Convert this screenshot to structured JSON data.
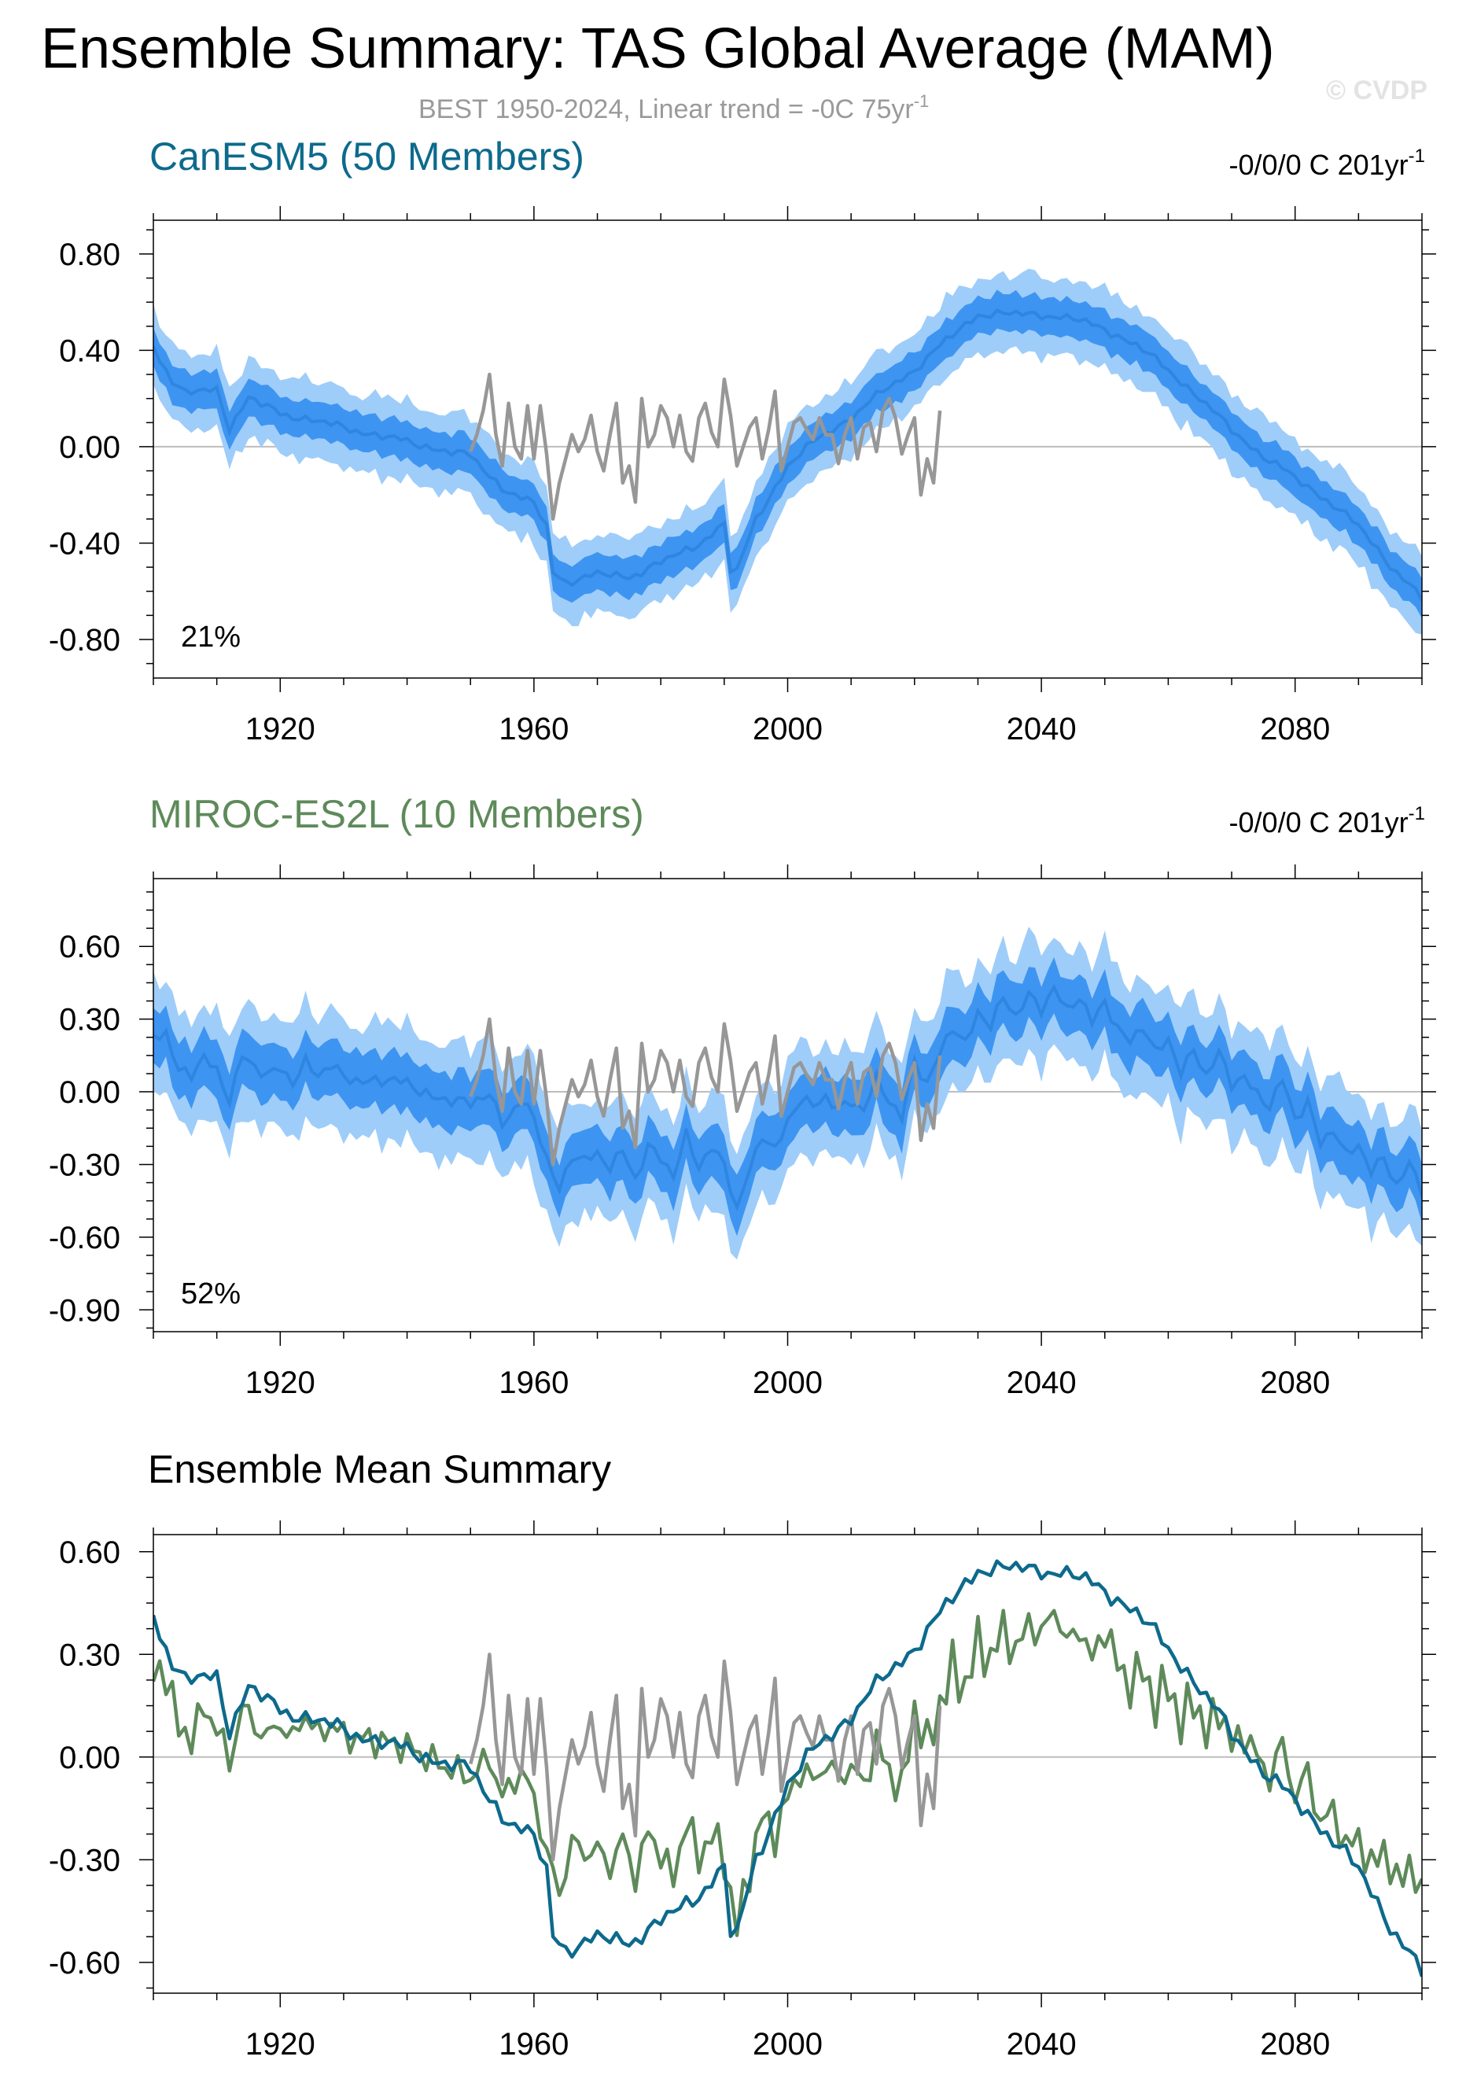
{
  "header": {
    "title": "Ensemble Summary: TAS Global Average (MAM)",
    "subtitle_main": "BEST 1950-2024, Linear trend = -0C 75yr",
    "subtitle_sup": "-1",
    "copyright": "© CVDP"
  },
  "colors": {
    "canesm": "#0d6a8c",
    "miroc": "#5e8a5a",
    "obs": "#979797",
    "band_outer": "#9fcdf9",
    "band_inner": "#3e95f1",
    "band_mean": "#2f86e0",
    "zero_line": "#bdbdbd"
  },
  "chart_data": [
    {
      "type": "area",
      "panel": "canesm5",
      "title": "CanESM5 (50 Members)",
      "trend_label": "-0/0/0 C 201yr",
      "trend_sup": "-1",
      "annotation": "21%",
      "x_ticks": [
        1920,
        1960,
        2000,
        2040,
        2080
      ],
      "x_tick_labels": [
        "1920",
        "1960",
        "2000",
        "2040",
        "2080"
      ],
      "xlim": [
        1900,
        2100
      ],
      "y_ticks": [
        0.8,
        0.4,
        0.0,
        -0.4,
        -0.8
      ],
      "y_tick_labels": [
        "0.80",
        "0.40",
        "0.00",
        "-0.40",
        "-0.80"
      ],
      "ylim": [
        -0.96,
        0.94
      ],
      "ensemble_mean": {
        "x": [
          1900,
          1903,
          1905,
          1910,
          1912,
          1915,
          1920,
          1930,
          1940,
          1950,
          1955,
          1960,
          1962,
          1963,
          1965,
          1970,
          1975,
          1980,
          1985,
          1990,
          1991,
          1992,
          1995,
          2000,
          2005,
          2010,
          2015,
          2020,
          2025,
          2030,
          2035,
          2040,
          2045,
          2050,
          2055,
          2060,
          2065,
          2070,
          2075,
          2080,
          2085,
          2090,
          2095,
          2100
        ],
        "y": [
          0.42,
          0.27,
          0.22,
          0.24,
          0.08,
          0.2,
          0.14,
          0.08,
          0.02,
          -0.04,
          -0.17,
          -0.24,
          -0.33,
          -0.52,
          -0.56,
          -0.53,
          -0.54,
          -0.48,
          -0.42,
          -0.32,
          -0.51,
          -0.52,
          -0.3,
          -0.08,
          0.04,
          0.12,
          0.23,
          0.32,
          0.44,
          0.55,
          0.55,
          0.55,
          0.53,
          0.49,
          0.42,
          0.32,
          0.2,
          0.07,
          -0.04,
          -0.13,
          -0.22,
          -0.33,
          -0.49,
          -0.63
        ]
      },
      "spread_inner_halfwidth": 0.07,
      "spread_outer_halfwidth": 0.14,
      "observed": {
        "x": [
          1950,
          1951,
          1952,
          1953,
          1954,
          1955,
          1956,
          1957,
          1958,
          1959,
          1960,
          1961,
          1962,
          1963,
          1964,
          1965,
          1966,
          1967,
          1968,
          1969,
          1970,
          1971,
          1972,
          1973,
          1974,
          1975,
          1976,
          1977,
          1978,
          1979,
          1980,
          1981,
          1982,
          1983,
          1984,
          1985,
          1986,
          1987,
          1988,
          1989,
          1990,
          1991,
          1992,
          1993,
          1994,
          1995,
          1996,
          1997,
          1998,
          1999,
          2000,
          2001,
          2002,
          2003,
          2004,
          2005,
          2006,
          2007,
          2008,
          2009,
          2010,
          2011,
          2012,
          2013,
          2014,
          2015,
          2016,
          2017,
          2018,
          2019,
          2020,
          2021,
          2022,
          2023,
          2024
        ],
        "y": [
          -0.02,
          0.05,
          0.15,
          0.3,
          0.05,
          -0.08,
          0.18,
          0.0,
          -0.05,
          0.17,
          -0.05,
          0.17,
          -0.03,
          -0.3,
          -0.15,
          -0.05,
          0.05,
          -0.02,
          0.03,
          0.13,
          -0.02,
          -0.1,
          0.05,
          0.18,
          -0.15,
          -0.08,
          -0.23,
          0.2,
          0.0,
          0.05,
          0.17,
          0.12,
          0.0,
          0.13,
          -0.02,
          -0.06,
          0.12,
          0.18,
          0.06,
          0.0,
          0.28,
          0.13,
          -0.08,
          0.0,
          0.08,
          0.12,
          -0.05,
          0.07,
          0.23,
          -0.1,
          0.0,
          0.1,
          0.12,
          0.07,
          0.03,
          0.12,
          0.05,
          0.05,
          -0.07,
          0.05,
          0.12,
          -0.05,
          0.08,
          0.1,
          -0.02,
          0.15,
          0.2,
          0.12,
          -0.03,
          0.05,
          0.12,
          -0.2,
          -0.05,
          -0.15,
          0.15
        ]
      }
    },
    {
      "type": "area",
      "panel": "miroc",
      "title": "MIROC-ES2L (10 Members)",
      "trend_label": "-0/0/0 C 201yr",
      "trend_sup": "-1",
      "annotation": "52%",
      "x_ticks": [
        1920,
        1960,
        2000,
        2040,
        2080
      ],
      "x_tick_labels": [
        "1920",
        "1960",
        "2000",
        "2040",
        "2080"
      ],
      "xlim": [
        1900,
        2100
      ],
      "y_ticks": [
        0.6,
        0.3,
        0.0,
        -0.3,
        -0.6,
        -0.9
      ],
      "y_tick_labels": [
        "0.60",
        "0.30",
        "0.00",
        "-0.30",
        "-0.60",
        "-0.90"
      ],
      "ylim": [
        -0.99,
        0.88
      ],
      "ensemble_mean": {
        "x": [
          1900,
          1902,
          1904,
          1906,
          1908,
          1910,
          1912,
          1914,
          1916,
          1918,
          1920,
          1922,
          1924,
          1926,
          1928,
          1930,
          1935,
          1940,
          1945,
          1950,
          1953,
          1955,
          1958,
          1960,
          1962,
          1964,
          1966,
          1968,
          1970,
          1972,
          1974,
          1976,
          1978,
          1980,
          1982,
          1984,
          1986,
          1988,
          1990,
          1992,
          1994,
          1996,
          1998,
          2000,
          2002,
          2004,
          2006,
          2008,
          2010,
          2012,
          2014,
          2016,
          2018,
          2020,
          2022,
          2024,
          2026,
          2028,
          2030,
          2032,
          2034,
          2036,
          2038,
          2040,
          2042,
          2044,
          2046,
          2048,
          2050,
          2052,
          2054,
          2056,
          2058,
          2060,
          2062,
          2064,
          2066,
          2068,
          2070,
          2072,
          2074,
          2076,
          2078,
          2080,
          2082,
          2084,
          2086,
          2088,
          2090,
          2092,
          2094,
          2096,
          2098,
          2100
        ],
        "y": [
          0.24,
          0.25,
          0.08,
          0.06,
          0.14,
          0.09,
          -0.02,
          0.15,
          0.09,
          0.06,
          0.1,
          0.05,
          0.13,
          0.06,
          0.1,
          0.06,
          0.05,
          0.03,
          -0.02,
          -0.06,
          0.0,
          -0.12,
          -0.04,
          -0.12,
          -0.28,
          -0.4,
          -0.25,
          -0.28,
          -0.27,
          -0.32,
          -0.24,
          -0.35,
          -0.22,
          -0.28,
          -0.36,
          -0.18,
          -0.3,
          -0.22,
          -0.3,
          -0.5,
          -0.33,
          -0.17,
          -0.23,
          -0.12,
          -0.04,
          -0.07,
          -0.02,
          -0.06,
          -0.03,
          -0.08,
          0.04,
          -0.04,
          -0.1,
          0.14,
          0.03,
          0.15,
          0.26,
          0.2,
          0.34,
          0.28,
          0.38,
          0.3,
          0.4,
          0.35,
          0.44,
          0.33,
          0.38,
          0.28,
          0.38,
          0.27,
          0.21,
          0.26,
          0.15,
          0.22,
          0.09,
          0.18,
          0.06,
          0.15,
          0.03,
          0.07,
          0.0,
          -0.06,
          0.04,
          -0.12,
          -0.04,
          -0.2,
          -0.15,
          -0.27,
          -0.23,
          -0.33,
          -0.26,
          -0.38,
          -0.3,
          -0.42
        ]
      },
      "spread_inner_halfwidth": 0.1,
      "spread_outer_halfwidth": 0.2,
      "observed_same_as_panel": "canesm5"
    },
    {
      "type": "line",
      "panel": "ensemble_mean",
      "title": "Ensemble Mean Summary",
      "x_ticks": [
        1920,
        1960,
        2000,
        2040,
        2080
      ],
      "x_tick_labels": [
        "1920",
        "1960",
        "2000",
        "2040",
        "2080"
      ],
      "xlim": [
        1900,
        2100
      ],
      "y_ticks": [
        0.6,
        0.3,
        0.0,
        -0.3,
        -0.6
      ],
      "y_tick_labels": [
        "0.60",
        "0.30",
        "0.00",
        "-0.30",
        "-0.60"
      ],
      "ylim": [
        -0.69,
        0.65
      ],
      "series": [
        {
          "model": "canesm5",
          "source": "chart_data.0.ensemble_mean"
        },
        {
          "model": "miroc",
          "source": "chart_data.1.ensemble_mean"
        },
        {
          "model": "observed",
          "source": "chart_data.0.observed"
        }
      ]
    }
  ]
}
